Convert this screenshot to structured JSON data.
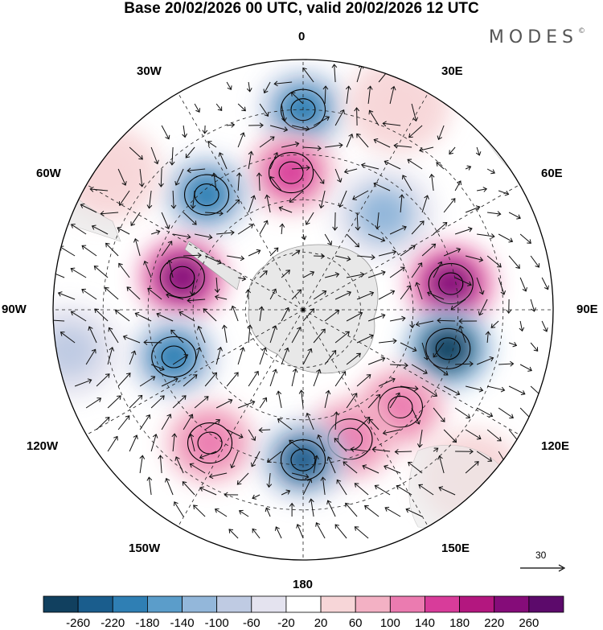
{
  "title": "Base 20/02/2026 00 UTC, valid 20/02/2026 12 UTC",
  "brand": "MODES",
  "brand_mark": "©",
  "longitude_labels": {
    "n": "0",
    "nne": "30E",
    "ene": "60E",
    "e": "90E",
    "ese": "120E",
    "sse": "150E",
    "s": "180",
    "ssw": "150W",
    "wsw": "120W",
    "w": "90W",
    "wnw": "60W",
    "nnw": "30W"
  },
  "reference_vector": {
    "label": "30",
    "icon": "arrow-right-icon"
  },
  "colorbar": {
    "labels": [
      "-260",
      "-220",
      "-180",
      "-140",
      "-100",
      "-60",
      "-20",
      "20",
      "60",
      "100",
      "140",
      "180",
      "220",
      "260"
    ],
    "colors": [
      "#11405f",
      "#1a5d8d",
      "#2f7fb4",
      "#5b9dca",
      "#93b7da",
      "#bfcbe3",
      "#e4e3ef",
      "#ffffff",
      "#f7d6d8",
      "#f3b1c4",
      "#eb7bb0",
      "#d83c9a",
      "#b3177f",
      "#850c79",
      "#5c0a6b"
    ]
  },
  "anomalies": [
    {
      "value": -180,
      "lon": 0,
      "lat_dist": 0.8
    },
    {
      "value": 180,
      "lon": -5,
      "lat_dist": 0.55
    },
    {
      "value": -180,
      "lon": -40,
      "lat_dist": 0.6
    },
    {
      "value": -100,
      "lon": 40,
      "lat_dist": 0.5
    },
    {
      "value": 260,
      "lon": -75,
      "lat_dist": 0.5
    },
    {
      "value": 260,
      "lon": 80,
      "lat_dist": 0.6
    },
    {
      "value": -260,
      "lon": 105,
      "lat_dist": 0.6
    },
    {
      "value": -180,
      "lon": -110,
      "lat_dist": 0.55
    },
    {
      "value": 140,
      "lon": 135,
      "lat_dist": 0.55
    },
    {
      "value": 140,
      "lon": 160,
      "lat_dist": 0.55
    },
    {
      "value": 140,
      "lon": -145,
      "lat_dist": 0.65
    },
    {
      "value": -220,
      "lon": 180,
      "lat_dist": 0.6
    },
    {
      "value": 60,
      "lon": 25,
      "lat_dist": 0.9
    },
    {
      "value": 60,
      "lon": -55,
      "lat_dist": 0.95
    },
    {
      "value": 60,
      "lon": 135,
      "lat_dist": 0.95
    },
    {
      "value": -60,
      "lon": -100,
      "lat_dist": 0.95
    }
  ]
}
